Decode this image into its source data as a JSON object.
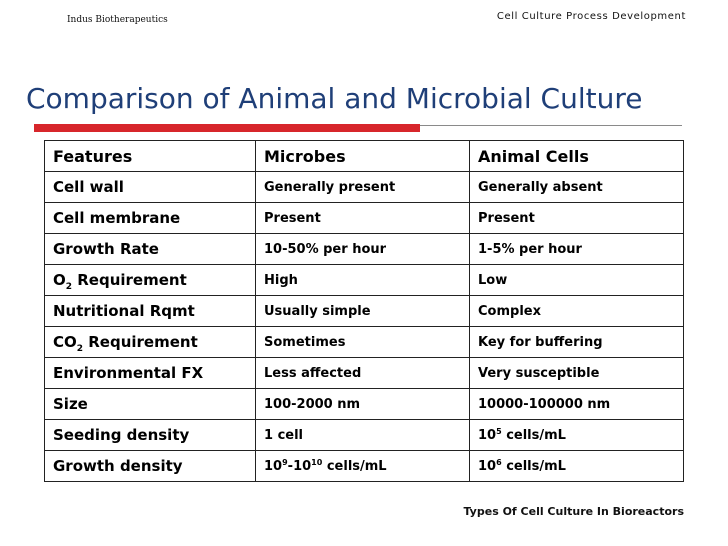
{
  "header": {
    "company": "Indus Biotherapeutics",
    "deck_title": "Cell Culture Process Development"
  },
  "slide": {
    "title": "Comparison of Animal and Microbial Culture",
    "accent_color": "#d7262b",
    "title_color": "#1f3f78"
  },
  "table": {
    "headers": [
      "Features",
      "Microbes",
      "Animal Cells"
    ],
    "rows": [
      {
        "feature": "Cell wall",
        "microbes": "Generally present",
        "animal": "Generally absent"
      },
      {
        "feature": "Cell membrane",
        "microbes": "Present",
        "animal": "Present"
      },
      {
        "feature": "Growth Rate",
        "microbes": "10-50% per hour",
        "animal": "1-5% per hour"
      },
      {
        "feature_prefix": "O",
        "feature_sub": "2",
        "feature_suffix": " Requirement",
        "microbes": "High",
        "animal": "Low"
      },
      {
        "feature": "Nutritional Rqmt",
        "microbes": "Usually simple",
        "animal": "Complex"
      },
      {
        "feature_prefix": "CO",
        "feature_sub": "2",
        "feature_suffix": " Requirement",
        "microbes": "Sometimes",
        "animal": "Key for buffering"
      },
      {
        "feature": "Environmental FX",
        "microbes": "Less affected",
        "animal": "Very susceptible"
      },
      {
        "feature": "Size",
        "microbes": "100-2000 nm",
        "animal": "10000-100000 nm"
      },
      {
        "feature": "Seeding density",
        "microbes": "1 cell",
        "animal_base": "10",
        "animal_exp": "5",
        "animal_unit": " cells/mL"
      },
      {
        "feature": "Growth density",
        "microbes_base1": "10",
        "microbes_exp1": "9",
        "microbes_dash": "-10",
        "microbes_exp2": "10",
        "microbes_unit": " cells/mL",
        "animal_base": "10",
        "animal_exp": "6",
        "animal_unit": " cells/mL"
      }
    ]
  },
  "footer": {
    "text": "Types Of Cell Culture In Bioreactors"
  }
}
